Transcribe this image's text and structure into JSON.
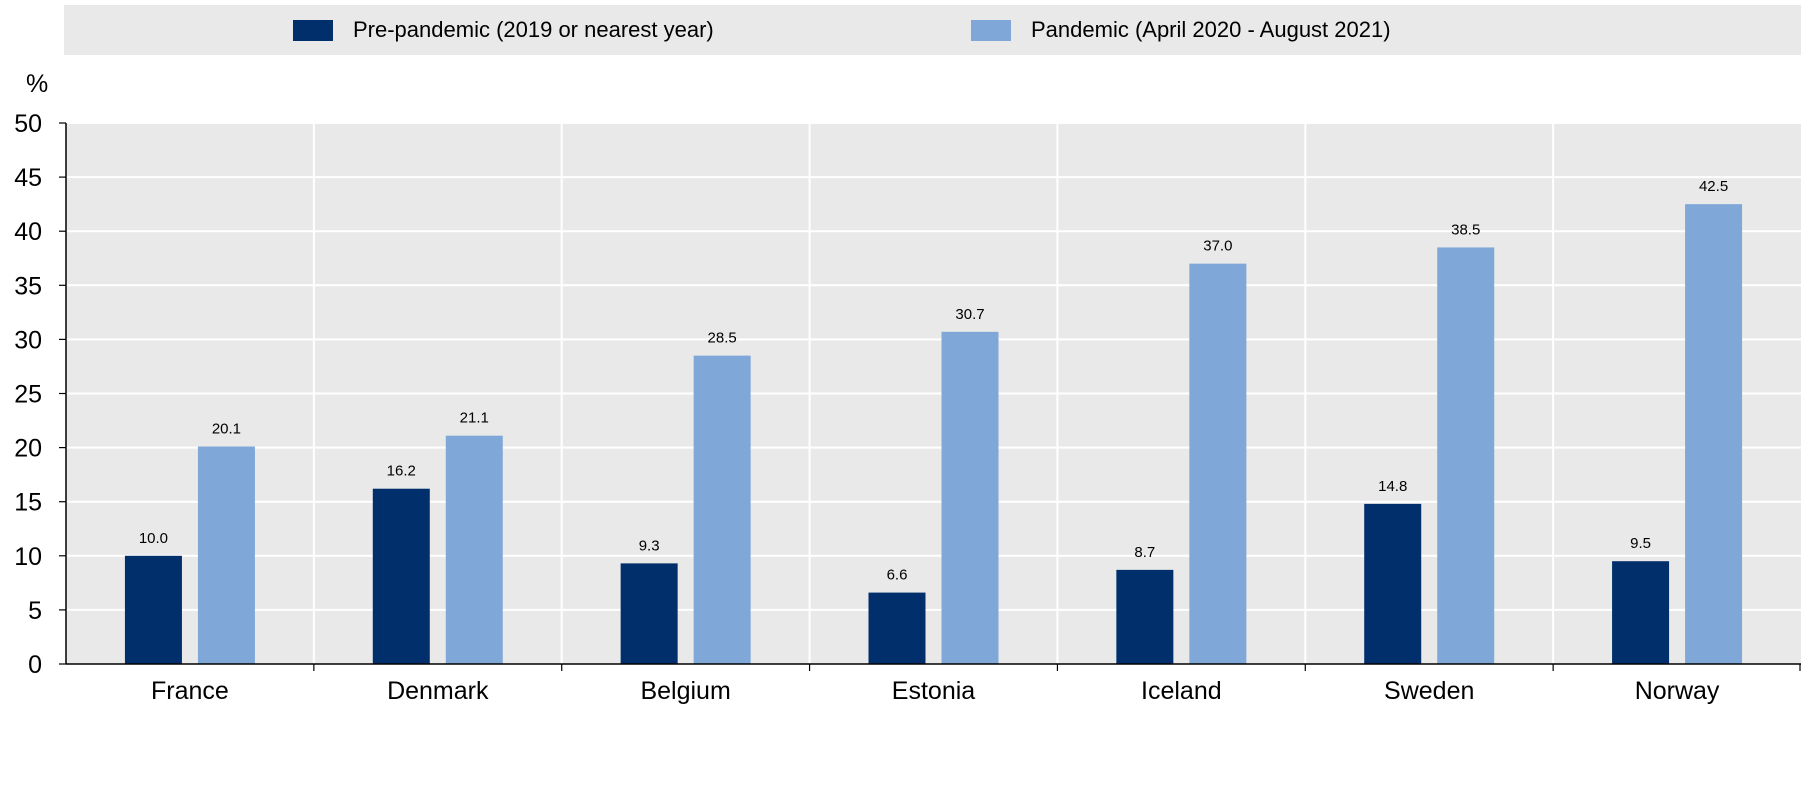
{
  "chart_data": {
    "type": "bar",
    "y_unit": "%",
    "ylim": [
      0,
      50
    ],
    "y_ticks": [
      0,
      5,
      10,
      15,
      20,
      25,
      30,
      35,
      40,
      45,
      50
    ],
    "categories": [
      "France",
      "Denmark",
      "Belgium",
      "Estonia",
      "Iceland",
      "Sweden",
      "Norway"
    ],
    "series": [
      {
        "name": "Pre-pandemic (2019 or nearest year)",
        "color": "#002f6c",
        "values": [
          10.0,
          16.2,
          9.3,
          6.6,
          8.7,
          14.8,
          9.5
        ],
        "labels": [
          "10.0",
          "16.2",
          "9.3",
          "6.6",
          "8.7",
          "14.8",
          "9.5"
        ]
      },
      {
        "name": "Pandemic (April 2020 - August 2021)",
        "color": "#7fa8d9",
        "values": [
          20.1,
          21.1,
          28.5,
          30.7,
          37.0,
          38.5,
          42.5
        ],
        "labels": [
          "20.1",
          "21.1",
          "28.5",
          "30.7",
          "37.0",
          "38.5",
          "42.5"
        ]
      }
    ],
    "grid": true,
    "legend_position": "top",
    "plot_background": "#e9e9e9"
  }
}
